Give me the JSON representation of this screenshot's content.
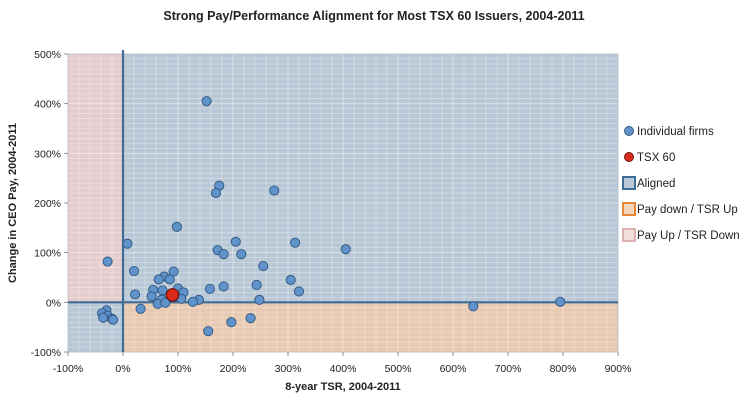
{
  "chart_data": {
    "type": "scatter",
    "title": "Strong Pay/Performance Alignment for Most TSX 60 Issuers, 2004-2011",
    "xlabel": "8-year TSR, 2004-2011",
    "ylabel": "Change in CEO Pay, 2004-2011",
    "xlim": [
      -100,
      900
    ],
    "ylim": [
      -100,
      500
    ],
    "x_ticks": [
      "-100%",
      "0%",
      "100%",
      "200%",
      "300%",
      "400%",
      "500%",
      "600%",
      "700%",
      "800%",
      "900%"
    ],
    "y_ticks": [
      "-100%",
      "0%",
      "100%",
      "200%",
      "300%",
      "400%",
      "500%"
    ],
    "grid": true,
    "legend_position": "right",
    "colors": {
      "aligned_fill": "#b9c8d6",
      "pay_down_fill": "#e8c9b1",
      "pay_up_fill": "#e5cdce",
      "axis_line": "#3e6d96",
      "firm_marker": "#5f93c9",
      "tsx_marker": "#d92a1c"
    },
    "regions": [
      {
        "name": "Aligned",
        "x": [
          0,
          900
        ],
        "y": [
          0,
          500
        ],
        "color": "#b9c8d6"
      },
      {
        "name": "Aligned",
        "x": [
          -100,
          0
        ],
        "y": [
          -100,
          0
        ],
        "color": "#b9c8d6"
      },
      {
        "name": "Pay down / TSR Up",
        "x": [
          0,
          900
        ],
        "y": [
          -100,
          0
        ],
        "color": "#e8c9b1"
      },
      {
        "name": "Pay Up / TSR Down",
        "x": [
          -100,
          0
        ],
        "y": [
          0,
          500
        ],
        "color": "#e5cdce"
      }
    ],
    "series": [
      {
        "name": "Individual firms",
        "color": "#5f93c9",
        "points": [
          [
            152,
            405
          ],
          [
            175,
            235
          ],
          [
            169,
            220
          ],
          [
            275,
            225
          ],
          [
            98,
            152
          ],
          [
            8,
            118
          ],
          [
            205,
            122
          ],
          [
            313,
            120
          ],
          [
            405,
            107
          ],
          [
            172,
            105
          ],
          [
            215,
            97
          ],
          [
            183,
            97
          ],
          [
            -28,
            82
          ],
          [
            255,
            73
          ],
          [
            20,
            63
          ],
          [
            92,
            62
          ],
          [
            75,
            52
          ],
          [
            65,
            46
          ],
          [
            85,
            46
          ],
          [
            305,
            45
          ],
          [
            183,
            32
          ],
          [
            243,
            35
          ],
          [
            158,
            27
          ],
          [
            55,
            25
          ],
          [
            72,
            24
          ],
          [
            100,
            28
          ],
          [
            110,
            20
          ],
          [
            320,
            22
          ],
          [
            22,
            16
          ],
          [
            52,
            12
          ],
          [
            82,
            10
          ],
          [
            95,
            10
          ],
          [
            106,
            7
          ],
          [
            70,
            5
          ],
          [
            138,
            5
          ],
          [
            248,
            5
          ],
          [
            127,
            1
          ],
          [
            63,
            -3
          ],
          [
            77,
            -1
          ],
          [
            795,
            1
          ],
          [
            637,
            -8
          ],
          [
            32,
            -13
          ],
          [
            -30,
            -16
          ],
          [
            -38,
            -22
          ],
          [
            -28,
            -27
          ],
          [
            -36,
            -31
          ],
          [
            -20,
            -33
          ],
          [
            -18,
            -35
          ],
          [
            232,
            -32
          ],
          [
            197,
            -40
          ],
          [
            155,
            -58
          ]
        ]
      },
      {
        "name": "TSX 60",
        "color": "#d92a1c",
        "points": [
          [
            90,
            15
          ]
        ]
      }
    ],
    "legend": [
      {
        "label": "Individual firms",
        "marker": "circle",
        "color": "#5f93c9"
      },
      {
        "label": "TSX 60",
        "marker": "circle",
        "color": "#d92a1c"
      },
      {
        "label": "Aligned",
        "marker": "square",
        "color": "#b9c8d6",
        "border": "#3e6d96"
      },
      {
        "label": "Pay down / TSR Up",
        "marker": "square",
        "color": "#f4d6bc",
        "border": "#e8873a"
      },
      {
        "label": "Pay Up / TSR Down",
        "marker": "square",
        "color": "#f3dcdc",
        "border": "#deb0b0"
      }
    ]
  }
}
